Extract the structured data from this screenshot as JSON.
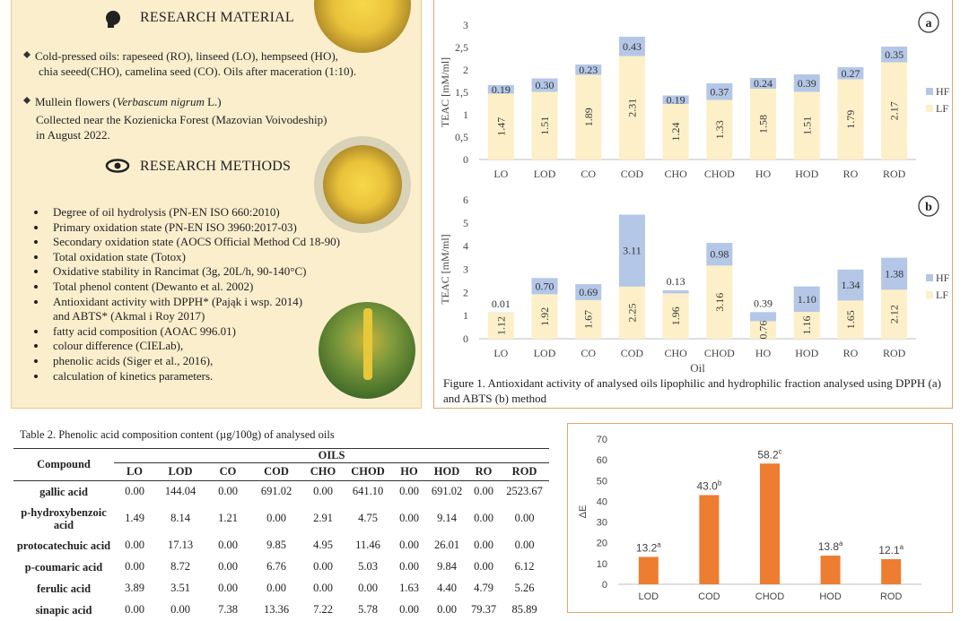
{
  "material": {
    "title": "RESEARCH MATERIAL",
    "oils": [
      "Cold-pressed oils: rapeseed (RO), linseed (LO), hempseed (HO),",
      "chia seeed(CHO), camelina seed (CO). Oils after maceration (1:10)."
    ],
    "flowers": {
      "prefix": "Mullein flowers (",
      "species": "Verbascum nigrum",
      "suffix": " L.)",
      "details": [
        "Collected near the Kozienicka Forest (Mazovian Voivodeship)",
        "in August 2022."
      ]
    }
  },
  "methods": {
    "title": "RESEARCH METHODS",
    "items": [
      [
        "Degree of oil hydrolysis (PN-EN ISO 660:2010)"
      ],
      [
        "Primary oxidation state (PN-EN ISO 3960:2017-03)"
      ],
      [
        "Secondary oxidation state (AOCS Official Method Cd 18-90)"
      ],
      [
        "Total oxidation state (Totox)"
      ],
      [
        "Oxidative stability in Rancimat (3g, 20L/h, 90-140°C)"
      ],
      [
        "Total phenol content (Dewanto et al. 2002)"
      ],
      [
        "Antioxidant activity with DPPH* (Pająk i wsp. 2014)",
        "and ABTS* (Akmal i Roy 2017)"
      ],
      [
        "fatty acid composition (AOAC 996.01)"
      ],
      [
        "colour difference (CIELab),"
      ],
      [
        "phenolic acids (Siger et al., 2016),"
      ],
      [
        "calculation of kinetics parameters."
      ]
    ]
  },
  "figure_caption": "Figure 1. Antioxidant activity of analysed oils lipophilic and hydrophilic fraction analysed using DPPH (a) and ABTS (b) method",
  "table": {
    "title": "Table 2. Phenolic acid composition content (µg/100g) of analysed oils",
    "header": {
      "compound": "Compound",
      "group": "OILS",
      "columns": [
        "LO",
        "LOD",
        "CO",
        "COD",
        "CHO",
        "CHOD",
        "HO",
        "HOD",
        "RO",
        "ROD"
      ]
    },
    "rows": [
      [
        "gallic acid",
        "0.00",
        "144.04",
        "0.00",
        "691.02",
        "0.00",
        "641.10",
        "0.00",
        "691.02",
        "0.00",
        "2523.67"
      ],
      [
        "p-hydroxybenzoic acid",
        "1.49",
        "8.14",
        "1.21",
        "0.00",
        "2.91",
        "4.75",
        "0.00",
        "9.14",
        "0.00",
        "0.00"
      ],
      [
        "protocatechuic acid",
        "0.00",
        "17.13",
        "0.00",
        "9.85",
        "4.95",
        "11.46",
        "0.00",
        "26.01",
        "0.00",
        "0.00"
      ],
      [
        "p-coumaric acid",
        "0.00",
        "8.72",
        "0.00",
        "6.76",
        "0.00",
        "5.03",
        "0.00",
        "9.84",
        "0.00",
        "6.12"
      ],
      [
        "ferulic acid",
        "3.89",
        "3.51",
        "0.00",
        "0.00",
        "0.00",
        "0.00",
        "1.63",
        "4.40",
        "4.79",
        "5.26"
      ],
      [
        "sinapic acid",
        "0.00",
        "0.00",
        "7.38",
        "13.36",
        "7.22",
        "5.78",
        "0.00",
        "0.00",
        "79.37",
        "85.89"
      ]
    ]
  },
  "chart_data": [
    {
      "type": "bar",
      "stacked": true,
      "panel_label": "a",
      "y_label": "TEAC [mM/ml]",
      "categories": [
        "LO",
        "LOD",
        "CO",
        "COD",
        "CHO",
        "CHOD",
        "HO",
        "HOD",
        "RO",
        "ROD"
      ],
      "series": [
        {
          "name": "LF",
          "color": "#fdf0c8",
          "values": [
            1.47,
            1.51,
            1.89,
            2.31,
            1.24,
            1.33,
            1.58,
            1.51,
            1.79,
            2.17
          ],
          "value_labels": [
            "1.47",
            "1.51",
            "1.89",
            "2.31",
            "1.24",
            "1.33",
            "1.58",
            "1.51",
            "1.79",
            "2.17"
          ]
        },
        {
          "name": "HF",
          "color": "#b4c7e7",
          "values": [
            0.19,
            0.3,
            0.23,
            0.43,
            0.19,
            0.37,
            0.24,
            0.39,
            0.27,
            0.35
          ],
          "value_labels": [
            "0.19",
            "0.30",
            "0.23",
            "0.43",
            "0.19",
            "0.37",
            "0.24",
            "0.39",
            "0.27",
            "0.35"
          ]
        }
      ],
      "ylim": [
        0,
        3
      ],
      "yticks": [
        0,
        {
          "value": 0.5,
          "label": "0,5"
        },
        1,
        {
          "value": 1.5,
          "label": "1,5"
        },
        2,
        {
          "value": 2.5,
          "label": "2,5"
        },
        3
      ],
      "legend": "right"
    },
    {
      "type": "bar",
      "stacked": true,
      "panel_label": "b",
      "y_label": "TEAC [mM/ml]",
      "x_label": "Oil",
      "categories": [
        "LO",
        "LOD",
        "CO",
        "COD",
        "CHO",
        "CHOD",
        "HO",
        "HOD",
        "RO",
        "ROD"
      ],
      "series": [
        {
          "name": "LF",
          "color": "#fdf0c8",
          "values": [
            1.12,
            1.92,
            1.67,
            2.25,
            1.96,
            3.16,
            0.76,
            1.16,
            1.65,
            2.12
          ],
          "value_labels": [
            "1.12",
            "1.92",
            "1.67",
            "2.25",
            "1.96",
            "3.16",
            "0.76",
            "1.16",
            "1.65",
            "2.12"
          ]
        },
        {
          "name": "HF",
          "color": "#b4c7e7",
          "values": [
            0.01,
            0.7,
            0.69,
            3.11,
            0.13,
            0.98,
            0.39,
            1.1,
            1.34,
            1.38
          ],
          "value_labels": [
            "0.01",
            "0.70",
            "0.69",
            "3.11",
            "0.13",
            "0.98",
            "0.39",
            "1.10",
            "1.34",
            "1.38"
          ]
        }
      ],
      "ylim": [
        0,
        6
      ],
      "yticks": [
        0,
        1,
        2,
        3,
        4,
        5,
        6
      ],
      "legend": "right"
    },
    {
      "type": "bar",
      "y_label": "ΔE",
      "categories": [
        "LOD",
        "COD",
        "CHOD",
        "HOD",
        "ROD"
      ],
      "values": [
        13.2,
        43.0,
        58.2,
        13.8,
        12.1
      ],
      "value_labels": [
        "13.2",
        "43.0",
        "58.2",
        "13.8",
        "12.1"
      ],
      "superscripts": [
        "a",
        "b",
        "c",
        "a",
        "a"
      ],
      "color": "#ed7d31",
      "ylim": [
        0,
        70
      ],
      "yticks": [
        0,
        10,
        20,
        30,
        40,
        50,
        60,
        70
      ]
    }
  ]
}
